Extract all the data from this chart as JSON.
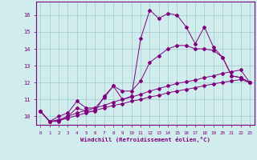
{
  "xlabel": "Windchill (Refroidissement éolien,°C)",
  "x": [
    0,
    1,
    2,
    3,
    4,
    5,
    6,
    7,
    8,
    9,
    10,
    11,
    12,
    13,
    14,
    15,
    16,
    17,
    18,
    19,
    20,
    21,
    22,
    23
  ],
  "line1": [
    10.3,
    9.7,
    9.7,
    10.0,
    10.5,
    10.3,
    10.3,
    11.2,
    11.8,
    11.0,
    11.2,
    14.6,
    16.3,
    15.8,
    16.1,
    16.0,
    15.3,
    14.3,
    15.3,
    14.1,
    13.5,
    12.4,
    12.3,
    12.0
  ],
  "line2": [
    10.3,
    9.7,
    10.0,
    10.2,
    10.9,
    10.5,
    10.5,
    11.1,
    11.8,
    11.5,
    11.5,
    12.1,
    13.2,
    13.6,
    14.0,
    14.2,
    14.2,
    14.0,
    14.0,
    13.9,
    13.5,
    12.4,
    12.3,
    12.0
  ],
  "line3": [
    10.3,
    9.7,
    9.8,
    10.0,
    10.2,
    10.35,
    10.5,
    10.65,
    10.85,
    11.0,
    11.15,
    11.3,
    11.5,
    11.65,
    11.8,
    11.95,
    12.05,
    12.15,
    12.3,
    12.4,
    12.55,
    12.65,
    12.75,
    12.0
  ],
  "line4": [
    10.3,
    9.7,
    9.75,
    9.9,
    10.05,
    10.2,
    10.35,
    10.5,
    10.65,
    10.75,
    10.9,
    11.0,
    11.15,
    11.25,
    11.4,
    11.5,
    11.6,
    11.7,
    11.82,
    11.92,
    12.02,
    12.1,
    12.18,
    12.0
  ],
  "ylim_min": 9.5,
  "ylim_max": 16.8,
  "yticks": [
    10,
    11,
    12,
    13,
    14,
    15,
    16
  ],
  "line_color": "#800080",
  "bg_color": "#d0ecec",
  "grid_color": "#a0cccc",
  "markersize": 2.0,
  "linewidth": 0.7
}
